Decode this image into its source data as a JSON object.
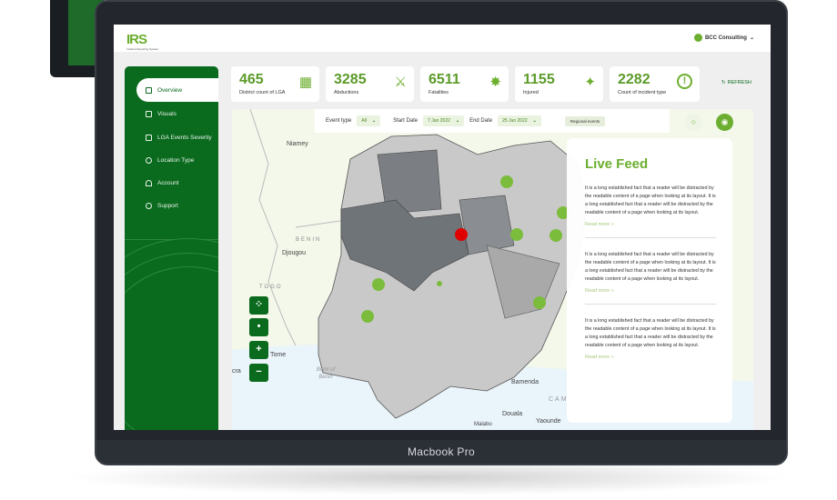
{
  "device": {
    "label": "Macbook Pro"
  },
  "header": {
    "logo": "IRS",
    "logo_sub": "Incident Reporting System",
    "user": "BCC Consulting"
  },
  "sidebar": {
    "items": [
      {
        "label": "Overview",
        "active": true
      },
      {
        "label": "Visuals"
      },
      {
        "label": "LGA Events Severity"
      },
      {
        "label": "Location Type"
      },
      {
        "label": "Account"
      },
      {
        "label": "Support"
      }
    ]
  },
  "stats": [
    {
      "value": "465",
      "label": "District count of LGA",
      "icon": "building-icon"
    },
    {
      "value": "3285",
      "label": "Abductions",
      "icon": "abduction-icon"
    },
    {
      "value": "6511",
      "label": "Fatalities",
      "icon": "fatality-icon"
    },
    {
      "value": "1155",
      "label": "Injured",
      "icon": "injured-icon"
    },
    {
      "value": "2282",
      "label": "Count of incident type",
      "icon": "alert-icon"
    }
  ],
  "refresh": "REFRESH",
  "filters": {
    "event_type_label": "Event type",
    "event_type": "All",
    "start_label": "Start Date",
    "start": "7 Jan 2022",
    "end_label": "End Date",
    "end": "25 Jun 2022",
    "regional": "Regional events"
  },
  "map": {
    "labels": [
      "Niamey",
      "BENIN",
      "Djougou",
      "TOGO",
      "Tome",
      "cra",
      "Bight of Benin",
      "Bamenda",
      "CAM",
      "Douala",
      "Malabo",
      "Yaounde"
    ],
    "accent": "#6cae2f",
    "alert": "#e00000"
  },
  "feed": {
    "title": "Live Feed",
    "items": [
      {
        "text": "It is a long established fact that a reader will be distracted by the readable content of a page when looking at its layout.  It is a long established fact that a reader will be distracted by the readable content of a page when looking at its layout.",
        "link": "Read more »"
      },
      {
        "text": "It is a long established fact that a reader will be distracted by the readable content of a page when looking at its layout.  It is a long established fact that a reader will be distracted by the readable content of a page when looking at its layout.",
        "link": "Read more »"
      },
      {
        "text": "It is a long established fact that a reader will be distracted by the readable content of a page when looking at its layout.  It is a long established fact that a reader will be distracted by the readable content of a page when looking at its layout.",
        "link": "Read more »"
      }
    ]
  }
}
